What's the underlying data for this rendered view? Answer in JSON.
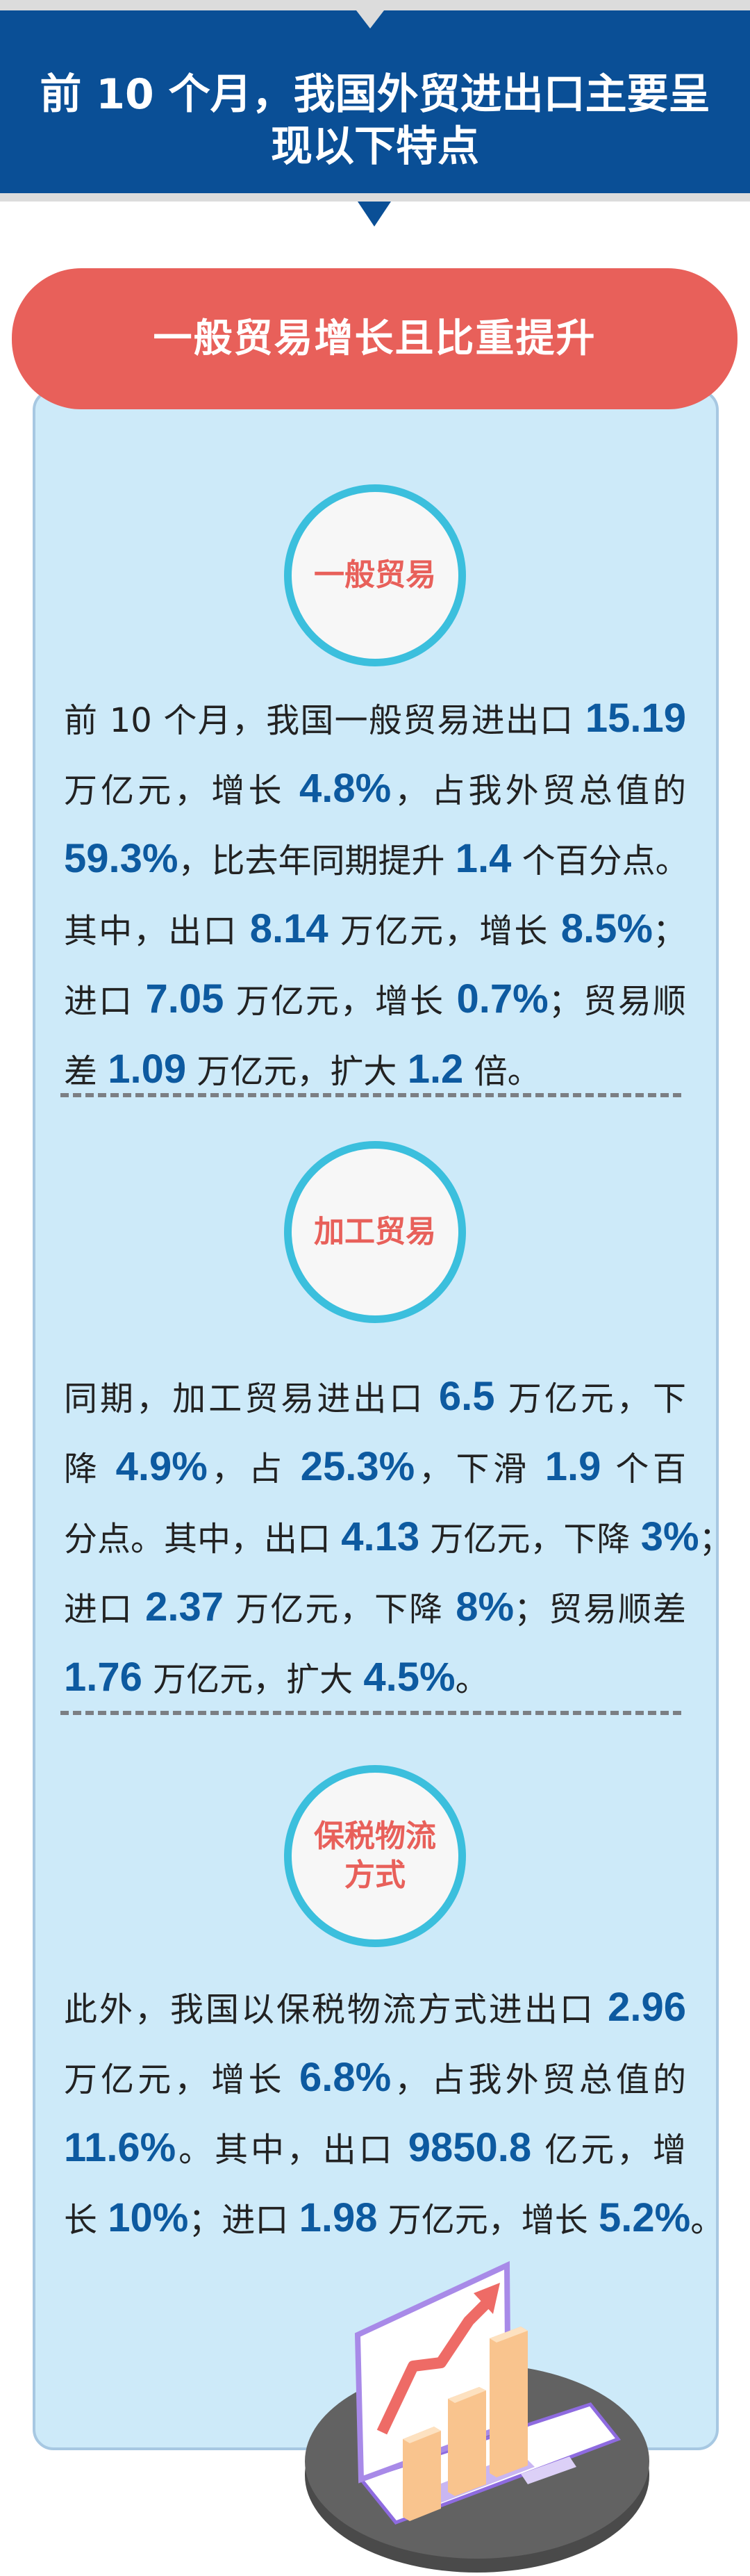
{
  "header": {
    "title_line1": "前 10 个月，我国外贸进出口主要呈",
    "title_line2": "现以下特点"
  },
  "section": {
    "title": "一般贸易增长且比重提升"
  },
  "blocks": [
    {
      "badge": [
        "一般贸易"
      ],
      "lines": [
        [
          {
            "t": "前 10 个月，我国一般贸易进出口 "
          },
          {
            "t": "15.19",
            "hl": true
          }
        ],
        [
          {
            "t": "万亿元，增长 "
          },
          {
            "t": "4.8%",
            "hl": true
          },
          {
            "t": "，占我外贸总值的"
          }
        ],
        [
          {
            "t": "59.3%",
            "hl": true
          },
          {
            "t": "，比去年同期提升 "
          },
          {
            "t": "1.4",
            "hl": true
          },
          {
            "t": " 个百分点。"
          }
        ],
        [
          {
            "t": "其中，出口 "
          },
          {
            "t": "8.14",
            "hl": true
          },
          {
            "t": " 万亿元，增长 "
          },
          {
            "t": "8.5%",
            "hl": true
          },
          {
            "t": "；"
          }
        ],
        [
          {
            "t": "进口 "
          },
          {
            "t": "7.05",
            "hl": true
          },
          {
            "t": " 万亿元，增长 "
          },
          {
            "t": "0.7%",
            "hl": true
          },
          {
            "t": "；贸易顺"
          }
        ],
        [
          {
            "t": "差 "
          },
          {
            "t": "1.09",
            "hl": true
          },
          {
            "t": " 万亿元，扩大 "
          },
          {
            "t": "1.2",
            "hl": true
          },
          {
            "t": " 倍。"
          }
        ]
      ]
    },
    {
      "badge": [
        "加工贸易"
      ],
      "lines": [
        [
          {
            "t": "同期，加工贸易进出口 "
          },
          {
            "t": "6.5",
            "hl": true
          },
          {
            "t": " 万亿元，下"
          }
        ],
        [
          {
            "t": "降 "
          },
          {
            "t": "4.9%",
            "hl": true
          },
          {
            "t": "，占 "
          },
          {
            "t": "25.3%",
            "hl": true
          },
          {
            "t": "，下滑 "
          },
          {
            "t": "1.9",
            "hl": true
          },
          {
            "t": " 个百"
          }
        ],
        [
          {
            "t": "分点。其中，出口 "
          },
          {
            "t": "4.13",
            "hl": true
          },
          {
            "t": " 万亿元，下降 "
          },
          {
            "t": "3%",
            "hl": true
          },
          {
            "t": "；"
          }
        ],
        [
          {
            "t": "进口 "
          },
          {
            "t": "2.37",
            "hl": true
          },
          {
            "t": " 万亿元，下降 "
          },
          {
            "t": "8%",
            "hl": true
          },
          {
            "t": "；贸易顺差"
          }
        ],
        [
          {
            "t": "1.76",
            "hl": true
          },
          {
            "t": " 万亿元，扩大 "
          },
          {
            "t": "4.5%",
            "hl": true
          },
          {
            "t": "。"
          }
        ]
      ]
    },
    {
      "badge": [
        "保税物流",
        "方式"
      ],
      "lines": [
        [
          {
            "t": "此外，我国以保税物流方式进出口 "
          },
          {
            "t": "2.96",
            "hl": true
          }
        ],
        [
          {
            "t": "万亿元，增长 "
          },
          {
            "t": "6.8%",
            "hl": true
          },
          {
            "t": "，占我外贸总值的"
          }
        ],
        [
          {
            "t": "11.6%",
            "hl": true
          },
          {
            "t": "。其中，出口 "
          },
          {
            "t": "9850.8",
            "hl": true
          },
          {
            "t": " 亿元，增"
          }
        ],
        [
          {
            "t": "长 "
          },
          {
            "t": "10%",
            "hl": true
          },
          {
            "t": "；进口 "
          },
          {
            "t": "1.98",
            "hl": true
          },
          {
            "t": " 万亿元，增长 "
          },
          {
            "t": "5.2%",
            "hl": true
          },
          {
            "t": "。"
          }
        ]
      ]
    }
  ],
  "illustration": {
    "icon": "laptop-growth-chart-icon"
  },
  "colors": {
    "header_bg": "#0a4f96",
    "pill_bg": "#e8605a",
    "panel_bg": "#cdeaf9",
    "highlight": "#0d5aa0",
    "circle_ring": "#3bbfdd"
  }
}
